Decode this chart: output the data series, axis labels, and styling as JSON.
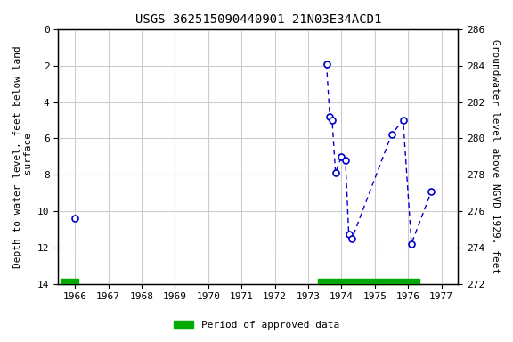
{
  "title": "USGS 362515090440901 21N03E34ACD1",
  "ylabel_left": "Depth to water level, feet below land\n surface",
  "ylabel_right": "Groundwater level above NGVD 1929, feet",
  "xlim": [
    1965.5,
    1977.5
  ],
  "ylim_left": [
    14,
    0
  ],
  "ylim_right": [
    272,
    286
  ],
  "xticks": [
    1966,
    1967,
    1968,
    1969,
    1970,
    1971,
    1972,
    1973,
    1974,
    1975,
    1976,
    1977
  ],
  "yticks_left": [
    0,
    2,
    4,
    6,
    8,
    10,
    12,
    14
  ],
  "yticks_right": [
    272,
    274,
    276,
    278,
    280,
    282,
    284,
    286
  ],
  "isolated_x": [
    1966.0
  ],
  "isolated_depth": [
    10.4
  ],
  "connected_x": [
    1973.55,
    1973.65,
    1973.72,
    1973.82,
    1974.0,
    1974.12,
    1974.22,
    1974.32,
    1975.5,
    1975.85,
    1976.1,
    1976.7
  ],
  "connected_depth": [
    1.9,
    4.8,
    5.0,
    7.9,
    7.0,
    7.2,
    11.3,
    11.5,
    5.8,
    5.0,
    11.8,
    8.9
  ],
  "approved_bars": [
    {
      "x_start": 1965.58,
      "x_end": 1966.1
    },
    {
      "x_start": 1973.3,
      "x_end": 1976.35
    }
  ],
  "background_color": "#ffffff",
  "plot_bg_color": "#ffffff",
  "line_color": "#0000cc",
  "marker_facecolor": "#ffffff",
  "marker_edgecolor": "#0000cc",
  "approved_bar_color": "#00aa00",
  "grid_color": "#cccccc",
  "legend_label": "Period of approved data",
  "font_family": "monospace",
  "title_fontsize": 10,
  "tick_fontsize": 8,
  "label_fontsize": 8
}
